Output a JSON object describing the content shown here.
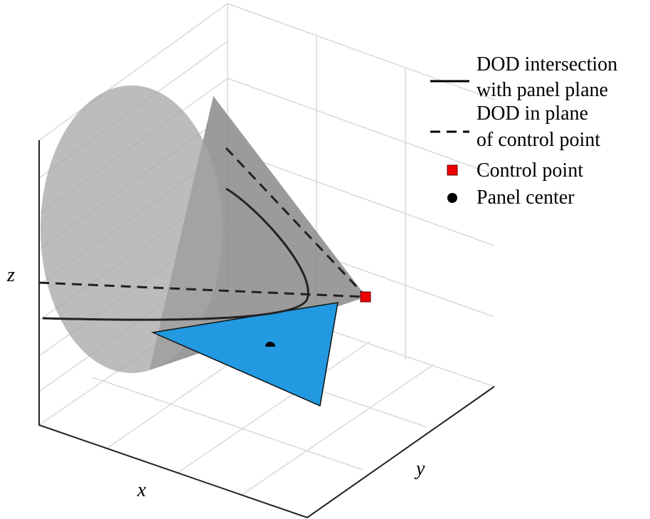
{
  "axes": {
    "x": "x",
    "y": "y",
    "z": "z"
  },
  "legend": [
    {
      "lines": [
        "DOD intersection",
        "with panel plane"
      ]
    },
    {
      "lines": [
        "DOD in plane",
        "of control point"
      ]
    },
    {
      "lines": [
        "Control point"
      ]
    },
    {
      "lines": [
        "Panel center"
      ]
    }
  ]
}
